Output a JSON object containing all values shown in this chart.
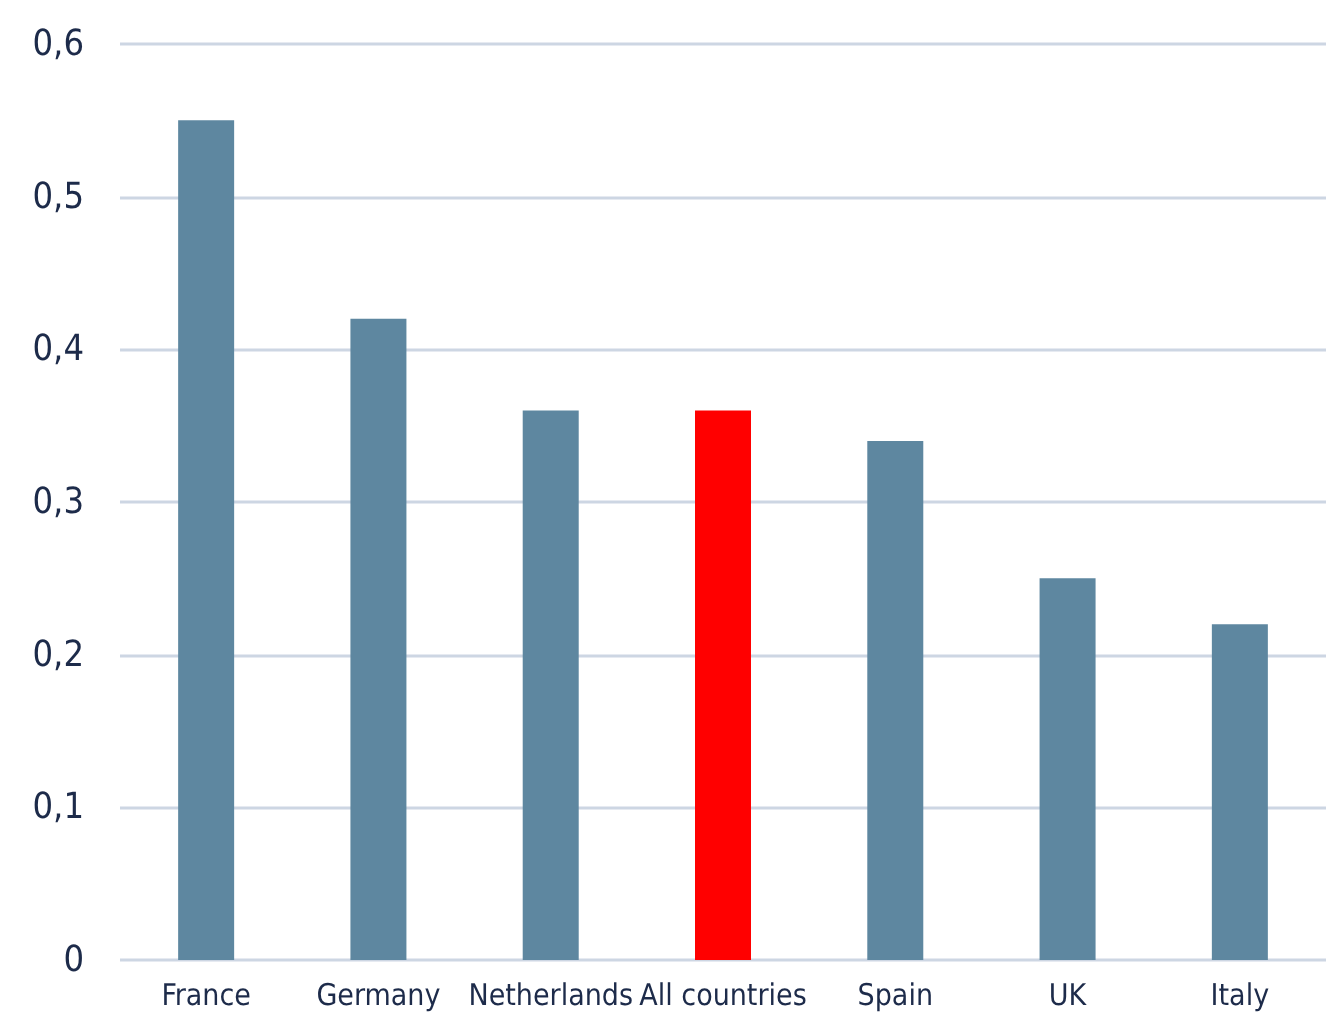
{
  "chart_data": {
    "type": "bar",
    "categories": [
      "France",
      "Germany",
      "Netherlands",
      "All countries",
      "Spain",
      "UK",
      "Italy"
    ],
    "values": [
      0.55,
      0.42,
      0.36,
      0.36,
      0.34,
      0.25,
      0.22
    ],
    "colors": [
      "#5e87a0",
      "#5e87a0",
      "#5e87a0",
      "#ff0000",
      "#5e87a0",
      "#5e87a0",
      "#5e87a0"
    ],
    "ylim": [
      0,
      0.6
    ],
    "yticks": [
      {
        "value": 0,
        "label": "0"
      },
      {
        "value": 0.1,
        "label": "0,1"
      },
      {
        "value": 0.2,
        "label": "0,2"
      },
      {
        "value": 0.3,
        "label": "0,3"
      },
      {
        "value": 0.4,
        "label": "0,4"
      },
      {
        "value": 0.5,
        "label": "0,5"
      },
      {
        "value": 0.6,
        "label": "0,6"
      }
    ],
    "grid": "y"
  }
}
